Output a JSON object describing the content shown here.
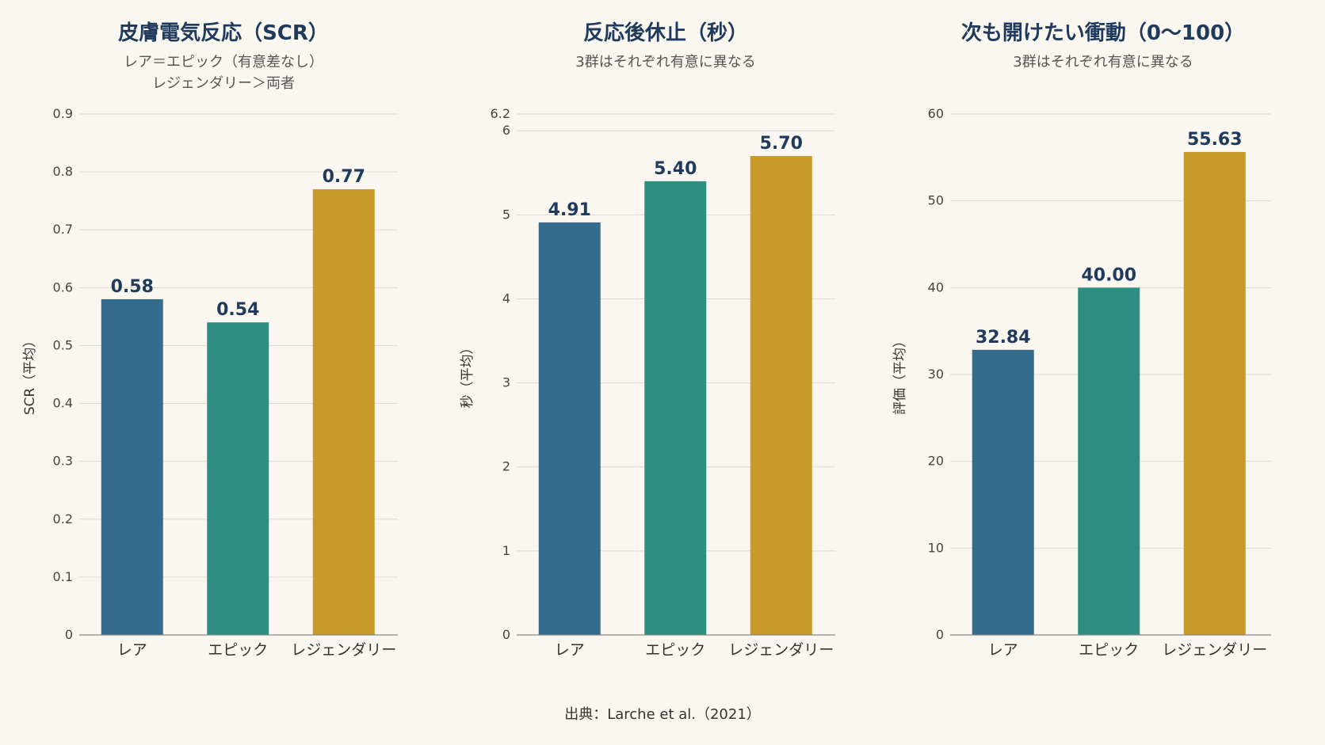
{
  "colors": {
    "rare": "#356b8c",
    "epic": "#2e8e82",
    "legendary": "#c79a2a"
  },
  "chart_data": [
    {
      "type": "bar",
      "title": "皮膚電気反応（SCR）",
      "subtitle": [
        "レア＝エピック（有意差なし）",
        "レジェンダリー＞両者"
      ],
      "ylabel": "SCR（平均）",
      "categories": [
        "レア",
        "エピック",
        "レジェンダリー"
      ],
      "values": [
        0.58,
        0.54,
        0.77
      ],
      "value_labels": [
        "0.58",
        "0.54",
        "0.77"
      ],
      "yticks": [
        0,
        0.1,
        0.2,
        0.3,
        0.4,
        0.5,
        0.6,
        0.7,
        0.8,
        0.9
      ],
      "ytick_labels": [
        "0",
        "0.1",
        "0.2",
        "0.3",
        "0.4",
        "0.5",
        "0.6",
        "0.7",
        "0.8",
        "0.9"
      ],
      "ylim": [
        0,
        0.9
      ],
      "grid": true
    },
    {
      "type": "bar",
      "title": "反応後休止（秒）",
      "subtitle": [
        "3群はそれぞれ有意に異なる"
      ],
      "ylabel": "秒（平均）",
      "categories": [
        "レア",
        "エピック",
        "レジェンダリー"
      ],
      "values": [
        4.91,
        5.4,
        5.7
      ],
      "value_labels": [
        "4.91",
        "5.40",
        "5.70"
      ],
      "yticks": [
        0,
        1,
        2,
        3,
        4,
        5,
        6,
        6.2
      ],
      "ytick_labels": [
        "0",
        "1",
        "2",
        "3",
        "4",
        "5",
        "6",
        "6.2"
      ],
      "ylim": [
        0,
        6.2
      ],
      "grid": true
    },
    {
      "type": "bar",
      "title": "次も開けたい衝動（0〜100）",
      "subtitle": [
        "3群はそれぞれ有意に異なる"
      ],
      "ylabel": "評価（平均）",
      "categories": [
        "レア",
        "エピック",
        "レジェンダリー"
      ],
      "values": [
        32.84,
        40.0,
        55.63
      ],
      "value_labels": [
        "32.84",
        "40.00",
        "55.63"
      ],
      "yticks": [
        0,
        10,
        20,
        30,
        40,
        50,
        60
      ],
      "ytick_labels": [
        "0",
        "10",
        "20",
        "30",
        "40",
        "50",
        "60"
      ],
      "ylim": [
        0,
        60
      ],
      "grid": true
    }
  ],
  "source": "出典：Larche et al.（2021）"
}
